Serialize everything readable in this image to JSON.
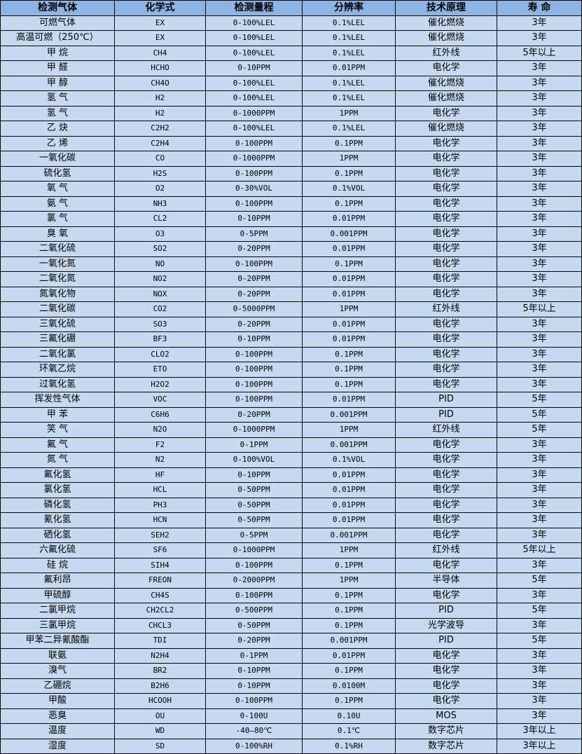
{
  "colors": {
    "header_bg": "#8db4e2",
    "row_bg": "#c5d9f1",
    "border": "#000000"
  },
  "headers": [
    "检测气体",
    "化学式",
    "检测量程",
    "分辨率",
    "技术原理",
    "寿 命"
  ],
  "rows": [
    [
      "可燃气体",
      "EX",
      "0-100%LEL",
      "0.1%LEL",
      "催化燃烧",
      "3年"
    ],
    [
      "高温可燃（250℃）",
      "EX",
      "0-100%LEL",
      "0.1%LEL",
      "催化燃烧",
      "3年"
    ],
    [
      "甲 烷",
      "CH4",
      "0-100%LEL",
      "0.1%LEL",
      "红外线",
      "5年以上"
    ],
    [
      "甲 醛",
      "HCHO",
      "0-10PPM",
      "0.01PPM",
      "电化学",
      "3年"
    ],
    [
      "甲 醇",
      "CH4O",
      "0-100%LEL",
      "0.1%LEL",
      "催化燃烧",
      "3年"
    ],
    [
      "氢 气",
      "H2",
      "0-100%LEL",
      "0.1%LEL",
      "催化燃烧",
      "3年"
    ],
    [
      "氢 气",
      "H2",
      "0-1000PPM",
      "1PPM",
      "电化学",
      "3年"
    ],
    [
      "乙 炔",
      "C2H2",
      "0-100%LEL",
      "0.1%LEL",
      "催化燃烧",
      "3年"
    ],
    [
      "乙 烯",
      "C2H4",
      "0-100PPM",
      "0.1PPM",
      "电化学",
      "3年"
    ],
    [
      "一氧化碳",
      "CO",
      "0-1000PPM",
      "1PPM",
      "电化学",
      "3年"
    ],
    [
      "硫化氢",
      "H2S",
      "0-100PPM",
      "0.1PPM",
      "电化学",
      "3年"
    ],
    [
      "氧 气",
      "O2",
      "0-30%VOL",
      "0.1%VOL",
      "电化学",
      "3年"
    ],
    [
      "氨 气",
      "NH3",
      "0-100PPM",
      "0.1PPM",
      "电化学",
      "3年"
    ],
    [
      "氯 气",
      "CL2",
      "0-10PPM",
      "0.01PPM",
      "电化学",
      "3年"
    ],
    [
      "臭 氧",
      "O3",
      "0-5PPM",
      "0.001PPM",
      "电化学",
      "3年"
    ],
    [
      "二氧化硫",
      "SO2",
      "0-20PPM",
      "0.01PPM",
      "电化学",
      "3年"
    ],
    [
      "一氧化氮",
      "NO",
      "0-100PPM",
      "0.1PPM",
      "电化学",
      "3年"
    ],
    [
      "二氧化氮",
      "NO2",
      "0-20PPM",
      "0.01PPM",
      "电化学",
      "3年"
    ],
    [
      "氮氧化物",
      "NOX",
      "0-20PPM",
      "0.01PPM",
      "电化学",
      "3年"
    ],
    [
      "二氧化碳",
      "CO2",
      "0-5000PPM",
      "1PPM",
      "红外线",
      "5年以上"
    ],
    [
      "三氧化硫",
      "SO3",
      "0-20PPM",
      "0.01PPM",
      "电化学",
      "3年"
    ],
    [
      "三氟化硼",
      "BF3",
      "0-10PPM",
      "0.01PPM",
      "电化学",
      "3年"
    ],
    [
      "二氧化氯",
      "CLO2",
      "0-100PPM",
      "0.1PPM",
      "电化学",
      "3年"
    ],
    [
      "环氧乙烷",
      "ETO",
      "0-100PPM",
      "0.1PPM",
      "电化学",
      "3年"
    ],
    [
      "过氧化氢",
      "H2O2",
      "0-100PPM",
      "0.1PPM",
      "电化学",
      "3年"
    ],
    [
      "挥发性气体",
      "VOC",
      "0-100PPM",
      "0.01PPM",
      "PID",
      "5年"
    ],
    [
      "甲 苯",
      "C6H6",
      "0-20PPM",
      "0.001PPM",
      "PID",
      "5年"
    ],
    [
      "笑 气",
      "N2O",
      "0-1000PPM",
      "1PPM",
      "红外线",
      "5年"
    ],
    [
      "氟 气",
      "F2",
      "0-1PPM",
      "0.001PPM",
      "电化学",
      "3年"
    ],
    [
      "氮 气",
      "N2",
      "0-100%VOL",
      "0.1%VOL",
      "电化学",
      "3年"
    ],
    [
      "氟化氢",
      "HF",
      "0-10PPM",
      "0.01PPM",
      "电化学",
      "3年"
    ],
    [
      "氯化氢",
      "HCL",
      "0-50PPM",
      "0.01PPM",
      "电化学",
      "3年"
    ],
    [
      "磷化氢",
      "PH3",
      "0-50PPM",
      "0.01PPM",
      "电化学",
      "3年"
    ],
    [
      "氰化氢",
      "HCN",
      "0-50PPM",
      "0.01PPM",
      "电化学",
      "3年"
    ],
    [
      "硒化氢",
      "SEH2",
      "0-5PPM",
      "0.001PPM",
      "电化学",
      "3年"
    ],
    [
      "六氟化硫",
      "SF6",
      "0-1000PPM",
      "1PPM",
      "红外线",
      "5年以上"
    ],
    [
      "硅 烷",
      "SIH4",
      "0-100PPM",
      "0.1PPM",
      "电化学",
      "3年"
    ],
    [
      "氟利昂",
      "FREON",
      "0-2000PPM",
      "1PPM",
      "半导体",
      "5年"
    ],
    [
      "甲硫醇",
      "CH4S",
      "0-100PPM",
      "0.1PPM",
      "电化学",
      "3年"
    ],
    [
      "二氯甲烷",
      "CH2CL2",
      "0-500PPM",
      "0.1PPM",
      "PID",
      "5年"
    ],
    [
      "三氯甲烷",
      "CHCL3",
      "0-50PPM",
      "0.1PPM",
      "光学波导",
      "3年"
    ],
    [
      "甲苯二异氰酸酯",
      "TDI",
      "0-20PPM",
      "0.001PPM",
      "PID",
      "5年"
    ],
    [
      "联氨",
      "N2H4",
      "0-1PPM",
      "0.01PPM",
      "电化学",
      "3年"
    ],
    [
      "溴气",
      "BR2",
      "0-10PPM",
      "0.1PPM",
      "电化学",
      "3年"
    ],
    [
      "乙硼烷",
      "B2H6",
      "0-10PPM",
      "0.0100M",
      "电化学",
      "3年"
    ],
    [
      "甲酸",
      "HCOOH",
      "0-100PPM",
      "0.1PPM",
      "电化学",
      "3年"
    ],
    [
      "恶臭",
      "OU",
      "0-100U",
      "0.10U",
      "MOS",
      "3年"
    ],
    [
      "温度",
      "WD",
      "-40—80℃",
      "0.1℃",
      "数字芯片",
      "3年以上"
    ],
    [
      "湿度",
      "SD",
      "0-100%RH",
      "0.1%RH",
      "数字芯片",
      "3年以上"
    ]
  ]
}
